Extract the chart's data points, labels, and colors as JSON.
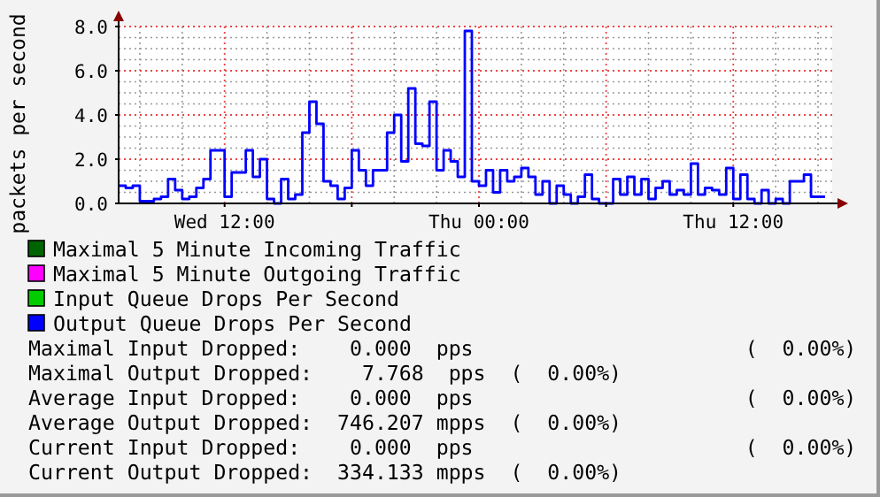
{
  "chart_data": {
    "type": "step",
    "ylabel": "packets per second",
    "categories": [
      null,
      null,
      null,
      null,
      null,
      null,
      null,
      null,
      null,
      null,
      null,
      null,
      null,
      null,
      null,
      "Wed 12:00",
      null,
      null,
      null,
      null,
      null,
      null,
      null,
      null,
      null,
      null,
      null,
      null,
      null,
      null,
      null,
      null,
      null,
      null,
      null,
      null,
      null,
      null,
      null,
      null,
      null,
      null,
      null,
      null,
      null,
      null,
      null,
      null,
      null,
      null,
      null,
      "Thu 00:00",
      null,
      null,
      null,
      null,
      null,
      null,
      null,
      null,
      null,
      null,
      null,
      null,
      null,
      null,
      null,
      null,
      null,
      null,
      null,
      null,
      null,
      null,
      null,
      null,
      null,
      null,
      null,
      null,
      null,
      null,
      null,
      null,
      null,
      null,
      null,
      "Thu 12:00",
      null,
      null,
      null,
      null,
      null,
      null,
      null,
      null,
      null,
      null,
      null,
      null,
      null
    ],
    "ylim": [
      0,
      8
    ],
    "yticks": [
      {
        "value": 0,
        "label": "0.0"
      },
      {
        "value": 2,
        "label": "2.0"
      },
      {
        "value": 4,
        "label": "4.0"
      },
      {
        "value": 6,
        "label": "6.0"
      },
      {
        "value": 8,
        "label": "8.0"
      }
    ],
    "grid": true,
    "legend": "bottom",
    "series": [
      {
        "name": "Maximal 5 Minute Incoming Traffic",
        "color": "#006400",
        "values": [
          null,
          null,
          null,
          null,
          null,
          null,
          null,
          null,
          null,
          null,
          null,
          null,
          null,
          null,
          null,
          null,
          null,
          null,
          null,
          null,
          null,
          null,
          null,
          null,
          null,
          null,
          null,
          null,
          null,
          null,
          null,
          null,
          null,
          null,
          null,
          null,
          null,
          null,
          null,
          null,
          null,
          null,
          null,
          null,
          null,
          null,
          null,
          null,
          null,
          null,
          null,
          null,
          null,
          null,
          null,
          null,
          null,
          null,
          null,
          null,
          null,
          null,
          null,
          null,
          null,
          null,
          null,
          null,
          null,
          null,
          null,
          null,
          null,
          null,
          null,
          null,
          null,
          null,
          null,
          null,
          null,
          null,
          null,
          null,
          null,
          null,
          null,
          null,
          null,
          null,
          null,
          null,
          null,
          null,
          null,
          null,
          null,
          null,
          null,
          null,
          null
        ]
      },
      {
        "name": "Maximal 5 Minute Outgoing Traffic",
        "color": "#ff00ff",
        "values": [
          null,
          null,
          null,
          null,
          null,
          null,
          null,
          null,
          null,
          null,
          null,
          null,
          null,
          null,
          null,
          null,
          null,
          null,
          null,
          null,
          null,
          null,
          null,
          null,
          null,
          null,
          null,
          null,
          null,
          null,
          null,
          null,
          null,
          null,
          null,
          null,
          null,
          null,
          null,
          null,
          null,
          null,
          null,
          null,
          null,
          null,
          null,
          null,
          null,
          null,
          null,
          null,
          null,
          null,
          null,
          null,
          null,
          null,
          null,
          null,
          null,
          null,
          null,
          null,
          null,
          null,
          null,
          null,
          null,
          null,
          null,
          null,
          null,
          null,
          null,
          null,
          null,
          null,
          null,
          null,
          null,
          null,
          null,
          null,
          null,
          null,
          null,
          null,
          null,
          null,
          null,
          null,
          null,
          null,
          null,
          null,
          null,
          null,
          null,
          null,
          null
        ]
      },
      {
        "name": "Input Queue Drops Per Second",
        "color": "#00cc00",
        "values": [
          null,
          null,
          null,
          null,
          null,
          null,
          null,
          null,
          null,
          null,
          null,
          null,
          null,
          null,
          null,
          null,
          null,
          null,
          null,
          null,
          null,
          null,
          null,
          null,
          null,
          null,
          null,
          null,
          null,
          null,
          null,
          null,
          null,
          null,
          null,
          null,
          null,
          null,
          null,
          null,
          null,
          null,
          null,
          null,
          null,
          null,
          null,
          null,
          null,
          null,
          null,
          null,
          null,
          null,
          null,
          null,
          null,
          null,
          null,
          null,
          null,
          null,
          null,
          null,
          null,
          null,
          null,
          null,
          null,
          null,
          null,
          null,
          null,
          null,
          null,
          null,
          null,
          null,
          null,
          null,
          null,
          null,
          null,
          null,
          null,
          null,
          null,
          null,
          null,
          null,
          null,
          null,
          null,
          null,
          null,
          null,
          null,
          null,
          null,
          null,
          null
        ]
      },
      {
        "name": "Output Queue Drops Per Second",
        "color": "#0000ff",
        "values": [
          0.8,
          0.7,
          0.8,
          0.1,
          0.1,
          0.2,
          0.3,
          1.1,
          0.6,
          0.2,
          0.3,
          0.7,
          1.1,
          2.4,
          2.4,
          0.3,
          1.4,
          1.4,
          2.4,
          1.2,
          2.0,
          0.2,
          0.0,
          1.1,
          0.2,
          0.4,
          3.2,
          4.6,
          3.6,
          1.0,
          0.8,
          0.2,
          0.7,
          2.4,
          1.5,
          0.8,
          1.5,
          1.5,
          3.2,
          4.0,
          1.9,
          5.2,
          2.7,
          2.6,
          4.6,
          1.5,
          2.4,
          1.9,
          1.2,
          7.8,
          1.0,
          0.8,
          1.5,
          0.5,
          1.5,
          1.0,
          1.2,
          1.6,
          1.2,
          0.4,
          1.0,
          0.0,
          0.8,
          0.4,
          0.0,
          0.3,
          1.3,
          0.2,
          0.0,
          0.0,
          1.1,
          0.4,
          1.2,
          0.4,
          1.1,
          0.2,
          0.7,
          1.0,
          0.4,
          0.6,
          0.4,
          1.8,
          0.4,
          0.7,
          0.6,
          0.4,
          1.6,
          0.2,
          1.3,
          0.2,
          0.0,
          0.6,
          0.0,
          0.2,
          0.0,
          1.0,
          1.0,
          1.3,
          0.3,
          0.3,
          0.3
        ]
      }
    ],
    "annotations": [
      "Maximal Input Dropped:    0.000  pps                      (  0.00%)",
      "Maximal Output Dropped:    7.768  pps  (  0.00%)",
      "Average Input Dropped:    0.000  pps                      (  0.00%)",
      "Average Output Dropped:  746.207 mpps  (  0.00%)",
      "Current Input Dropped:    0.000  pps                      (  0.00%)",
      "Current Output Dropped:  334.133 mpps  (  0.00%)"
    ]
  }
}
